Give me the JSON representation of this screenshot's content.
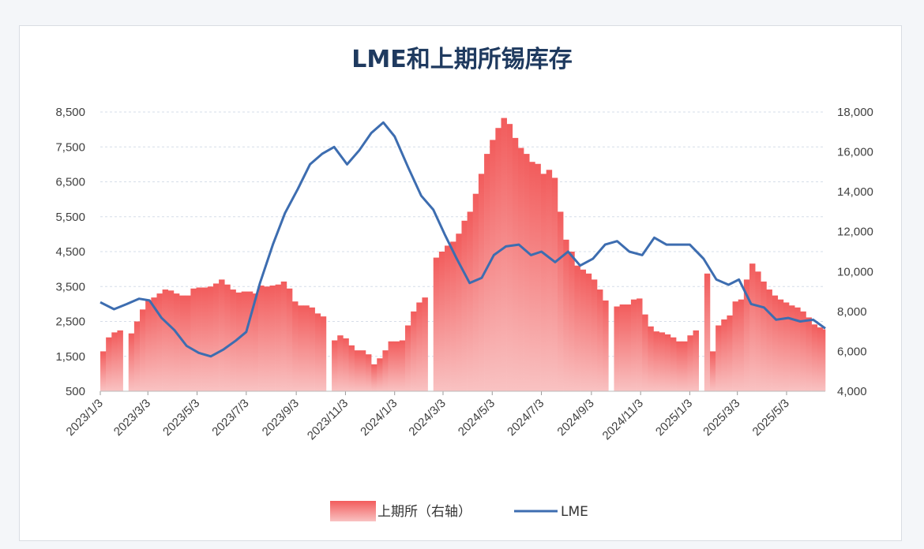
{
  "chart_data": {
    "type": "bar+line",
    "title": "LME和上期所锡库存",
    "x_ticks": [
      "2023/1/3",
      "2023/3/3",
      "2023/5/3",
      "2023/7/3",
      "2023/9/3",
      "2023/11/3",
      "2024/1/3",
      "2024/3/3",
      "2024/5/3",
      "2024/7/3",
      "2024/9/3",
      "2024/11/3",
      "2025/1/3",
      "2025/3/3",
      "2025/5/3"
    ],
    "x_range": [
      "2023/1/3",
      "2025/6/20"
    ],
    "left_axis": {
      "ticks": [
        "500",
        "1,500",
        "2,500",
        "3,500",
        "4,500",
        "5,500",
        "6,500",
        "7,500",
        "8,500"
      ],
      "min": 500,
      "max": 8500,
      "step": 1000
    },
    "right_axis": {
      "ticks": [
        "4,000",
        "6,000",
        "8,000",
        "10,000",
        "12,000",
        "14,000",
        "16,000",
        "18,000"
      ],
      "min": 4000,
      "max": 18000,
      "step": 2000
    },
    "grid": true,
    "legend_position": "bottom",
    "series": [
      {
        "name": "上期所（右轴）",
        "type": "bar",
        "axis": "right",
        "color": "#f25c5c",
        "points": [
          [
            "2023-01-03",
            6000
          ],
          [
            "2023-01-10",
            6700
          ],
          [
            "2023-01-17",
            6950
          ],
          [
            "2023-01-24",
            7050
          ],
          [
            "2023-01-31",
            4000
          ],
          [
            "2023-02-07",
            6900
          ],
          [
            "2023-02-14",
            7500
          ],
          [
            "2023-02-21",
            8100
          ],
          [
            "2023-02-28",
            8550
          ],
          [
            "2023-03-07",
            8700
          ],
          [
            "2023-03-14",
            8900
          ],
          [
            "2023-03-21",
            9100
          ],
          [
            "2023-03-28",
            9050
          ],
          [
            "2023-04-04",
            8900
          ],
          [
            "2023-04-11",
            8800
          ],
          [
            "2023-04-18",
            8800
          ],
          [
            "2023-04-25",
            9150
          ],
          [
            "2023-05-02",
            9200
          ],
          [
            "2023-05-09",
            9200
          ],
          [
            "2023-05-16",
            9250
          ],
          [
            "2023-05-23",
            9400
          ],
          [
            "2023-05-30",
            9600
          ],
          [
            "2023-06-06",
            9350
          ],
          [
            "2023-06-13",
            9100
          ],
          [
            "2023-06-20",
            8950
          ],
          [
            "2023-06-27",
            9000
          ],
          [
            "2023-07-04",
            9000
          ],
          [
            "2023-07-11",
            8900
          ],
          [
            "2023-07-18",
            9300
          ],
          [
            "2023-07-25",
            9250
          ],
          [
            "2023-08-01",
            9300
          ],
          [
            "2023-08-08",
            9350
          ],
          [
            "2023-08-15",
            9500
          ],
          [
            "2023-08-22",
            9150
          ],
          [
            "2023-08-29",
            8500
          ],
          [
            "2023-09-05",
            8300
          ],
          [
            "2023-09-12",
            8300
          ],
          [
            "2023-09-19",
            8200
          ],
          [
            "2023-09-26",
            7900
          ],
          [
            "2023-10-03",
            7750
          ],
          [
            "2023-10-10",
            4000
          ],
          [
            "2023-10-17",
            6550
          ],
          [
            "2023-10-24",
            6800
          ],
          [
            "2023-10-31",
            6650
          ],
          [
            "2023-11-07",
            6300
          ],
          [
            "2023-11-14",
            6050
          ],
          [
            "2023-11-21",
            6050
          ],
          [
            "2023-11-28",
            5850
          ],
          [
            "2023-12-05",
            5350
          ],
          [
            "2023-12-12",
            5650
          ],
          [
            "2023-12-19",
            6050
          ],
          [
            "2023-12-26",
            6500
          ],
          [
            "2024-01-02",
            6500
          ],
          [
            "2024-01-09",
            6550
          ],
          [
            "2024-01-16",
            7300
          ],
          [
            "2024-01-23",
            8000
          ],
          [
            "2024-01-30",
            8450
          ],
          [
            "2024-02-06",
            8700
          ],
          [
            "2024-02-13",
            4000
          ],
          [
            "2024-02-20",
            10700
          ],
          [
            "2024-02-27",
            11000
          ],
          [
            "2024-03-05",
            11300
          ],
          [
            "2024-03-12",
            11500
          ],
          [
            "2024-03-19",
            11900
          ],
          [
            "2024-03-26",
            12550
          ],
          [
            "2024-04-02",
            13000
          ],
          [
            "2024-04-09",
            13900
          ],
          [
            "2024-04-16",
            14900
          ],
          [
            "2024-04-23",
            15900
          ],
          [
            "2024-04-30",
            16600
          ],
          [
            "2024-05-07",
            17200
          ],
          [
            "2024-05-14",
            17700
          ],
          [
            "2024-05-21",
            17400
          ],
          [
            "2024-05-28",
            16700
          ],
          [
            "2024-06-04",
            16200
          ],
          [
            "2024-06-11",
            15900
          ],
          [
            "2024-06-18",
            15500
          ],
          [
            "2024-06-25",
            15400
          ],
          [
            "2024-07-02",
            14900
          ],
          [
            "2024-07-09",
            15100
          ],
          [
            "2024-07-16",
            14700
          ],
          [
            "2024-07-23",
            13000
          ],
          [
            "2024-07-30",
            11600
          ],
          [
            "2024-08-06",
            11000
          ],
          [
            "2024-08-13",
            10300
          ],
          [
            "2024-08-20",
            10100
          ],
          [
            "2024-08-27",
            9900
          ],
          [
            "2024-09-03",
            9600
          ],
          [
            "2024-09-10",
            9100
          ],
          [
            "2024-09-17",
            8550
          ],
          [
            "2024-09-24",
            4000
          ],
          [
            "2024-10-01",
            8250
          ],
          [
            "2024-10-08",
            8350
          ],
          [
            "2024-10-15",
            8350
          ],
          [
            "2024-10-22",
            8600
          ],
          [
            "2024-10-29",
            8650
          ],
          [
            "2024-11-05",
            7850
          ],
          [
            "2024-11-12",
            7250
          ],
          [
            "2024-11-19",
            7000
          ],
          [
            "2024-11-26",
            6950
          ],
          [
            "2024-12-03",
            6850
          ],
          [
            "2024-12-10",
            6700
          ],
          [
            "2024-12-17",
            6500
          ],
          [
            "2024-12-24",
            6500
          ],
          [
            "2024-12-31",
            6800
          ],
          [
            "2025-01-07",
            7050
          ],
          [
            "2025-01-14",
            4000
          ],
          [
            "2025-01-21",
            9900
          ],
          [
            "2025-01-28",
            6000
          ],
          [
            "2025-02-04",
            7300
          ],
          [
            "2025-02-11",
            7600
          ],
          [
            "2025-02-18",
            7800
          ],
          [
            "2025-02-25",
            8500
          ],
          [
            "2025-03-04",
            8600
          ],
          [
            "2025-03-11",
            9600
          ],
          [
            "2025-03-18",
            10400
          ],
          [
            "2025-03-25",
            10000
          ],
          [
            "2025-04-01",
            9500
          ],
          [
            "2025-04-08",
            9100
          ],
          [
            "2025-04-15",
            8800
          ],
          [
            "2025-04-22",
            8600
          ],
          [
            "2025-04-29",
            8450
          ],
          [
            "2025-05-06",
            8300
          ],
          [
            "2025-05-13",
            8200
          ],
          [
            "2025-05-20",
            8000
          ],
          [
            "2025-05-27",
            7700
          ],
          [
            "2025-06-03",
            7350
          ],
          [
            "2025-06-10",
            7200
          ],
          [
            "2025-06-17",
            7100
          ]
        ]
      },
      {
        "name": "LME",
        "type": "line",
        "axis": "left",
        "color": "#3d6db0",
        "points": [
          [
            "2023-01-03",
            3050
          ],
          [
            "2023-01-20",
            2850
          ],
          [
            "2023-02-05",
            3000
          ],
          [
            "2023-02-20",
            3150
          ],
          [
            "2023-03-05",
            3100
          ],
          [
            "2023-03-20",
            2600
          ],
          [
            "2023-04-05",
            2250
          ],
          [
            "2023-04-20",
            1800
          ],
          [
            "2023-05-05",
            1600
          ],
          [
            "2023-05-20",
            1500
          ],
          [
            "2023-06-05",
            1700
          ],
          [
            "2023-06-20",
            1950
          ],
          [
            "2023-07-03",
            2200
          ],
          [
            "2023-07-20",
            3600
          ],
          [
            "2023-08-05",
            4700
          ],
          [
            "2023-08-20",
            5600
          ],
          [
            "2023-09-05",
            6300
          ],
          [
            "2023-09-20",
            7000
          ],
          [
            "2023-10-05",
            7300
          ],
          [
            "2023-10-20",
            7500
          ],
          [
            "2023-11-05",
            7000
          ],
          [
            "2023-11-20",
            7400
          ],
          [
            "2023-12-05",
            7900
          ],
          [
            "2023-12-20",
            8200
          ],
          [
            "2024-01-03",
            7800
          ],
          [
            "2024-01-20",
            6900
          ],
          [
            "2024-02-05",
            6100
          ],
          [
            "2024-02-20",
            5700
          ],
          [
            "2024-03-05",
            5000
          ],
          [
            "2024-03-20",
            4300
          ],
          [
            "2024-04-05",
            3600
          ],
          [
            "2024-04-20",
            3750
          ],
          [
            "2024-05-05",
            4400
          ],
          [
            "2024-05-20",
            4650
          ],
          [
            "2024-06-05",
            4700
          ],
          [
            "2024-06-20",
            4400
          ],
          [
            "2024-07-03",
            4500
          ],
          [
            "2024-07-20",
            4200
          ],
          [
            "2024-08-05",
            4500
          ],
          [
            "2024-08-20",
            4100
          ],
          [
            "2024-09-05",
            4300
          ],
          [
            "2024-09-20",
            4700
          ],
          [
            "2024-10-05",
            4800
          ],
          [
            "2024-10-20",
            4500
          ],
          [
            "2024-11-05",
            4400
          ],
          [
            "2024-11-20",
            4900
          ],
          [
            "2024-12-05",
            4700
          ],
          [
            "2024-12-20",
            4700
          ],
          [
            "2025-01-03",
            4700
          ],
          [
            "2025-01-20",
            4300
          ],
          [
            "2025-02-05",
            3700
          ],
          [
            "2025-02-20",
            3550
          ],
          [
            "2025-03-05",
            3700
          ],
          [
            "2025-03-20",
            3000
          ],
          [
            "2025-04-05",
            2900
          ],
          [
            "2025-04-20",
            2550
          ],
          [
            "2025-05-05",
            2600
          ],
          [
            "2025-05-20",
            2500
          ],
          [
            "2025-06-05",
            2550
          ],
          [
            "2025-06-20",
            2300
          ]
        ]
      }
    ],
    "legend": [
      {
        "name": "上期所（右轴）",
        "symbol": "bar"
      },
      {
        "name": "LME",
        "symbol": "line"
      }
    ]
  }
}
